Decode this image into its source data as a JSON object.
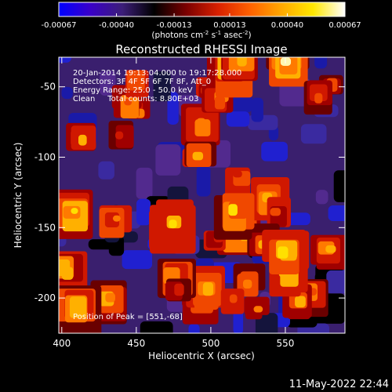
{
  "colorbar": {
    "tick_labels": [
      "-0.00067",
      "-0.00040",
      "-0.00013",
      "0.00013",
      "0.00040",
      "0.00067"
    ],
    "min": -0.00067,
    "max": 0.00067,
    "units_main": "(photons cm",
    "units_exp1": "-2",
    "units_mid": " s",
    "units_exp2": "-1",
    "units_tail": " asec",
    "units_exp3": "-2",
    "units_close": ")",
    "colors": [
      "#0000ff",
      "#3a00c8",
      "#3c1e78",
      "#000000",
      "#7a0000",
      "#d82000",
      "#ff6000",
      "#ffa800",
      "#ffe800",
      "#ffffff"
    ]
  },
  "chart_data": {
    "type": "heatmap",
    "title": "Reconstructed RHESSI Image",
    "xlabel": "Heliocentric X (arcsec)",
    "ylabel": "Heliocentric Y (arcsec)",
    "xlim": [
      398,
      590
    ],
    "ylim": [
      -225,
      -29
    ],
    "x_ticks": [
      400,
      450,
      500,
      550
    ],
    "y_ticks": [
      -50,
      -100,
      -150,
      -200
    ],
    "annotations": {
      "time_range": "20-Jan-2014 19:13:04.000 to 19:17:28.000",
      "detectors": "Detectors: 3F 4F 5F 6F 7F 8F, Att_0",
      "energy_range": "Energy Range: 25.0 - 50.0 keV",
      "clean_totals": "Clean     Total counts: 8.80E+03",
      "peak_position": "Position of Peak = [551,-68]"
    },
    "peak": {
      "x": 551,
      "y": -68
    }
  },
  "timestamp": "11-May-2022 22:44"
}
